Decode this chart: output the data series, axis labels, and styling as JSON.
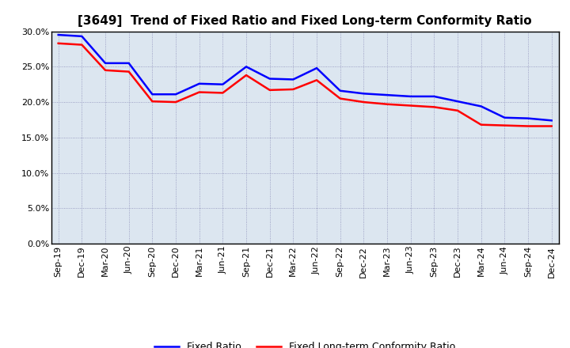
{
  "title": "[3649]  Trend of Fixed Ratio and Fixed Long-term Conformity Ratio",
  "x_labels": [
    "Sep-19",
    "Dec-19",
    "Mar-20",
    "Jun-20",
    "Sep-20",
    "Dec-20",
    "Mar-21",
    "Jun-21",
    "Sep-21",
    "Dec-21",
    "Mar-22",
    "Jun-22",
    "Sep-22",
    "Dec-22",
    "Mar-23",
    "Jun-23",
    "Sep-23",
    "Dec-23",
    "Mar-24",
    "Jun-24",
    "Sep-24",
    "Dec-24"
  ],
  "fixed_ratio": [
    29.5,
    29.3,
    25.5,
    25.5,
    21.1,
    21.1,
    22.6,
    22.5,
    25.0,
    23.3,
    23.2,
    24.8,
    21.6,
    21.2,
    21.0,
    20.8,
    20.8,
    20.1,
    19.4,
    17.8,
    17.7,
    17.4
  ],
  "fixed_lt_ratio": [
    28.3,
    28.1,
    24.5,
    24.3,
    20.1,
    20.0,
    21.4,
    21.3,
    23.8,
    21.7,
    21.8,
    23.1,
    20.5,
    20.0,
    19.7,
    19.5,
    19.3,
    18.8,
    16.8,
    16.7,
    16.6,
    16.6
  ],
  "fixed_ratio_color": "#0000ff",
  "fixed_lt_ratio_color": "#ff0000",
  "ylim": [
    0.0,
    30.0
  ],
  "yticks": [
    0.0,
    5.0,
    10.0,
    15.0,
    20.0,
    25.0,
    30.0
  ],
  "plot_bg_color": "#dce6f0",
  "fig_bg_color": "#ffffff",
  "grid_color": "#7777aa",
  "legend_fixed_ratio": "Fixed Ratio",
  "legend_fixed_lt_ratio": "Fixed Long-term Conformity Ratio",
  "title_fontsize": 11,
  "axis_fontsize": 8,
  "legend_fontsize": 9,
  "line_width": 1.8
}
